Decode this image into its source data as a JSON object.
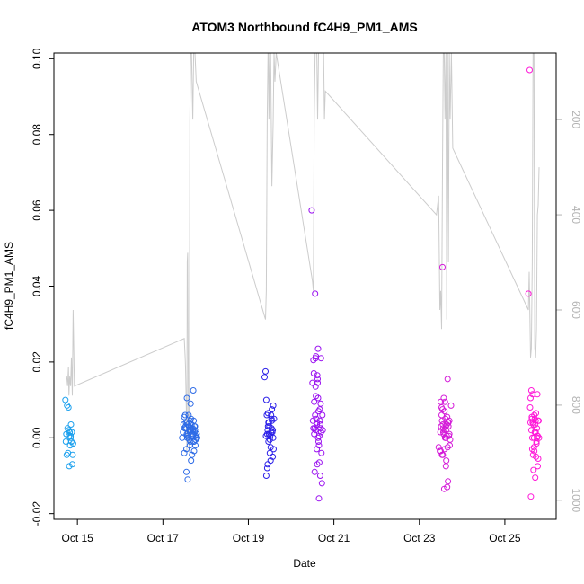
{
  "chart_data": {
    "type": "scatter",
    "title": "ATOM3 Northbound fC4H9_PM1_AMS",
    "xlabel": "Date",
    "ylabel": "fC4H9_PM1_AMS",
    "x_tick_labels": [
      "Oct 15",
      "Oct 17",
      "Oct 19",
      "Oct 21",
      "Oct 23",
      "Oct 25"
    ],
    "x_tick_days": [
      15,
      17,
      19,
      21,
      23,
      25
    ],
    "xlim": [
      14.45,
      26.2
    ],
    "y_tick_labels": [
      "-0.02",
      "0.00",
      "0.02",
      "0.04",
      "0.06",
      "0.08",
      "0.10"
    ],
    "y_tick_values": [
      -0.02,
      0.0,
      0.02,
      0.04,
      0.06,
      0.08,
      0.1
    ],
    "ylim": [
      -0.0215,
      0.1015
    ],
    "right_axis": {
      "tick_labels": [
        "200",
        "400",
        "600",
        "800",
        "1000"
      ],
      "tick_values": [
        200,
        400,
        600,
        800,
        1000
      ],
      "lim": [
        60,
        1040
      ],
      "color": "#b3b3b3"
    },
    "grid": false,
    "legend": "none",
    "altitude_series": {
      "color": "#cccccc",
      "x": [
        14.75,
        14.77,
        14.79,
        14.8,
        14.82,
        14.84,
        14.86,
        14.88,
        14.9,
        14.93,
        17.5,
        17.52,
        17.53,
        17.55,
        17.56,
        17.57,
        17.58,
        17.6,
        17.62,
        17.63,
        17.65,
        17.67,
        17.7,
        17.72,
        17.75,
        17.78,
        19.4,
        19.42,
        19.44,
        19.46,
        19.47,
        19.48,
        19.5,
        19.52,
        19.55,
        19.58,
        19.6,
        19.62,
        19.65,
        20.5,
        20.52,
        20.54,
        20.56,
        20.58,
        20.6,
        20.62,
        20.64,
        20.66,
        20.68,
        20.7,
        20.72,
        20.74,
        20.76,
        20.78,
        20.8,
        23.4,
        23.45,
        23.48,
        23.5,
        23.52,
        23.54,
        23.56,
        23.58,
        23.6,
        23.62,
        23.64,
        23.66,
        23.68,
        23.7,
        23.72,
        23.75,
        23.78,
        25.55,
        25.57,
        25.6,
        25.62,
        25.64,
        25.66,
        25.68,
        25.7,
        25.72,
        25.74,
        25.76,
        25.78,
        25.8
      ],
      "y": [
        740,
        760,
        720,
        780,
        740,
        760,
        700,
        780,
        600,
        760,
        660,
        700,
        720,
        820,
        900,
        500,
        480,
        860,
        900,
        200,
        60,
        60,
        200,
        60,
        60,
        120,
        620,
        560,
        200,
        60,
        60,
        200,
        60,
        60,
        340,
        200,
        60,
        120,
        60,
        540,
        560,
        200,
        60,
        60,
        60,
        200,
        60,
        60,
        60,
        60,
        60,
        60,
        60,
        200,
        140,
        400,
        360,
        600,
        560,
        640,
        300,
        60,
        60,
        200,
        60,
        620,
        60,
        500,
        60,
        200,
        60,
        260,
        600,
        520,
        700,
        680,
        500,
        60,
        60,
        680,
        700,
        640,
        400,
        380,
        300
      ]
    },
    "series": [
      {
        "color": "#1ba0ee",
        "x": [
          14.72,
          14.74,
          14.75,
          14.77,
          14.78,
          14.79,
          14.8,
          14.81,
          14.82,
          14.83,
          14.84,
          14.85,
          14.86,
          14.87,
          14.88,
          14.89,
          14.9,
          14.73,
          14.76,
          14.8,
          14.84
        ],
        "y": [
          0.01,
          0.001,
          -0.0045,
          0.0025,
          -0.004,
          0.008,
          0.0005,
          -0.0075,
          0.0015,
          -0.002,
          0.0005,
          0.0035,
          -0.001,
          0.0015,
          -0.007,
          -0.0045,
          -0.0015,
          -0.001,
          0.0085,
          0.002,
          0.0
        ]
      },
      {
        "color": "#2e6be6",
        "x": [
          17.45,
          17.48,
          17.5,
          17.52,
          17.54,
          17.55,
          17.56,
          17.57,
          17.58,
          17.6,
          17.61,
          17.62,
          17.63,
          17.64,
          17.65,
          17.66,
          17.67,
          17.68,
          17.7,
          17.71,
          17.72,
          17.73,
          17.74,
          17.75,
          17.76,
          17.77,
          17.78,
          17.79,
          17.8,
          17.5,
          17.53,
          17.57,
          17.6,
          17.63,
          17.66,
          17.69,
          17.72,
          17.75,
          17.47,
          17.51,
          17.55,
          17.59,
          17.64,
          17.68,
          17.71,
          17.74,
          17.77,
          17.8,
          17.52,
          17.58,
          17.62,
          17.67,
          17.73,
          17.79,
          17.56,
          17.65,
          17.7
        ],
        "y": [
          0.0,
          0.0035,
          -0.004,
          0.0025,
          0.004,
          -0.009,
          0.0105,
          0.0,
          -0.011,
          0.006,
          0.003,
          -0.0005,
          0.0015,
          -0.001,
          0.009,
          -0.006,
          0.0025,
          0.0005,
          0.002,
          0.0125,
          0.0045,
          -0.0035,
          0.0015,
          0.003,
          -0.002,
          0.0005,
          0.0,
          0.001,
          0.0,
          0.0055,
          0.003,
          0.004,
          0.0,
          -0.002,
          0.005,
          0.001,
          -0.001,
          0.002,
          0.0015,
          0.0025,
          -0.003,
          0.0035,
          0.0045,
          -0.0045,
          0.001,
          0.003,
          -0.0005,
          0.0,
          0.006,
          0.0005,
          0.002,
          0.0035,
          -0.001,
          0.0,
          0.001,
          0.002,
          0.0025
        ]
      },
      {
        "color": "#2b1fe8",
        "x": [
          19.38,
          19.4,
          19.42,
          19.44,
          19.45,
          19.46,
          19.47,
          19.48,
          19.5,
          19.51,
          19.52,
          19.53,
          19.54,
          19.55,
          19.56,
          19.57,
          19.58,
          19.6,
          19.41,
          19.43,
          19.45,
          19.47,
          19.49,
          19.52,
          19.55,
          19.58,
          19.44,
          19.5,
          19.53,
          19.57,
          19.42,
          19.48,
          19.54,
          19.59,
          19.46
        ],
        "y": [
          0.016,
          0.0175,
          0.01,
          -0.008,
          -0.007,
          0.0065,
          0.004,
          0.001,
          -0.004,
          0.0005,
          -0.006,
          0.006,
          0.0025,
          0.0075,
          0.0015,
          0.002,
          0.0085,
          0.005,
          0.0005,
          0.006,
          0.002,
          -0.001,
          0.003,
          -0.0025,
          0.0045,
          0.0,
          0.001,
          -0.0005,
          0.0015,
          -0.005,
          -0.01,
          0.004,
          0.005,
          -0.003,
          0.003
        ]
      },
      {
        "color": "#9a10f0",
        "x": [
          20.48,
          20.5,
          20.52,
          20.54,
          20.55,
          20.56,
          20.57,
          20.58,
          20.6,
          20.61,
          20.62,
          20.63,
          20.64,
          20.65,
          20.66,
          20.67,
          20.68,
          20.7,
          20.72,
          20.74,
          20.53,
          20.57,
          20.6,
          20.63,
          20.66,
          20.69,
          20.71,
          20.55,
          20.59,
          20.64,
          20.68,
          20.51,
          20.62,
          20.73,
          20.58,
          20.65,
          20.7,
          20.52,
          20.56,
          20.61,
          20.67,
          20.63,
          20.69,
          20.57,
          20.6,
          20.54
        ],
        "y": [
          0.06,
          0.0145,
          0.0205,
          0.0095,
          -0.009,
          0.038,
          0.021,
          0.0215,
          0.004,
          0.0165,
          0.0155,
          0.0105,
          0.007,
          -0.016,
          0.0005,
          0.0075,
          0.0035,
          0.021,
          -0.012,
          0.002,
          0.017,
          0.0135,
          0.0035,
          0.0,
          -0.0065,
          0.0025,
          -0.004,
          0.0025,
          0.005,
          -0.001,
          -0.01,
          0.0045,
          0.0145,
          0.006,
          0.011,
          -0.002,
          0.0015,
          0.0025,
          0.006,
          -0.007,
          0.0045,
          0.0235,
          0.009,
          0.002,
          -0.003,
          0.001
        ]
      },
      {
        "color": "#d41bd8",
        "x": [
          23.45,
          23.48,
          23.5,
          23.52,
          23.54,
          23.55,
          23.56,
          23.57,
          23.58,
          23.6,
          23.61,
          23.62,
          23.63,
          23.64,
          23.65,
          23.66,
          23.67,
          23.68,
          23.7,
          23.72,
          23.74,
          23.5,
          23.53,
          23.56,
          23.59,
          23.62,
          23.65,
          23.68,
          23.71,
          23.49,
          23.52,
          23.55,
          23.58,
          23.61,
          23.64,
          23.67,
          23.7,
          23.53,
          23.57,
          23.62,
          23.66,
          23.69,
          23.51,
          23.6,
          23.63,
          23.54,
          23.59
        ],
        "y": [
          -0.0025,
          -0.0035,
          0.0095,
          0.008,
          0.045,
          -0.0045,
          0.0025,
          0.0105,
          -0.0135,
          0.0095,
          0.005,
          -0.0075,
          0.002,
          0.0035,
          -0.013,
          0.0155,
          -0.0115,
          0.004,
          0.0045,
          -0.0005,
          0.0085,
          -0.0035,
          0.0045,
          0.0015,
          -0.003,
          0.0,
          0.0055,
          0.003,
          -0.002,
          0.0015,
          0.006,
          0.0035,
          0.002,
          0.0,
          0.0005,
          0.004,
          0.001,
          -0.0045,
          0.001,
          0.003,
          -0.0025,
          0.0005,
          0.003,
          0.0,
          -0.006,
          0.0075,
          0.007
        ]
      },
      {
        "color": "#ff18d8",
        "x": [
          25.55,
          25.58,
          25.6,
          25.62,
          25.64,
          25.65,
          25.66,
          25.67,
          25.68,
          25.7,
          25.71,
          25.72,
          25.73,
          25.74,
          25.75,
          25.76,
          25.77,
          25.78,
          25.8,
          25.61,
          25.63,
          25.66,
          25.69,
          25.72,
          25.75,
          25.78,
          25.59,
          25.62,
          25.65,
          25.68,
          25.71,
          25.74,
          25.77,
          25.6,
          25.64,
          25.69,
          25.73,
          25.76,
          25.63,
          25.67,
          25.7,
          25.79
        ],
        "y": [
          0.038,
          0.097,
          0.0105,
          0.0125,
          0.0,
          0.0115,
          -0.0045,
          0.0035,
          0.0,
          0.005,
          -0.0105,
          0.0045,
          0.0065,
          -0.0015,
          0.0025,
          0.0115,
          -0.0075,
          0.0045,
          0.0,
          -0.0155,
          0.0055,
          0.004,
          -0.0035,
          0.0015,
          0.0,
          -0.0055,
          0.008,
          0.002,
          0.004,
          -0.0025,
          0.0035,
          -0.001,
          0.0005,
          0.004,
          -0.003,
          0.006,
          -0.005,
          0.0005,
          0.005,
          -0.0085,
          0.0015,
          0.0045
        ]
      }
    ]
  }
}
